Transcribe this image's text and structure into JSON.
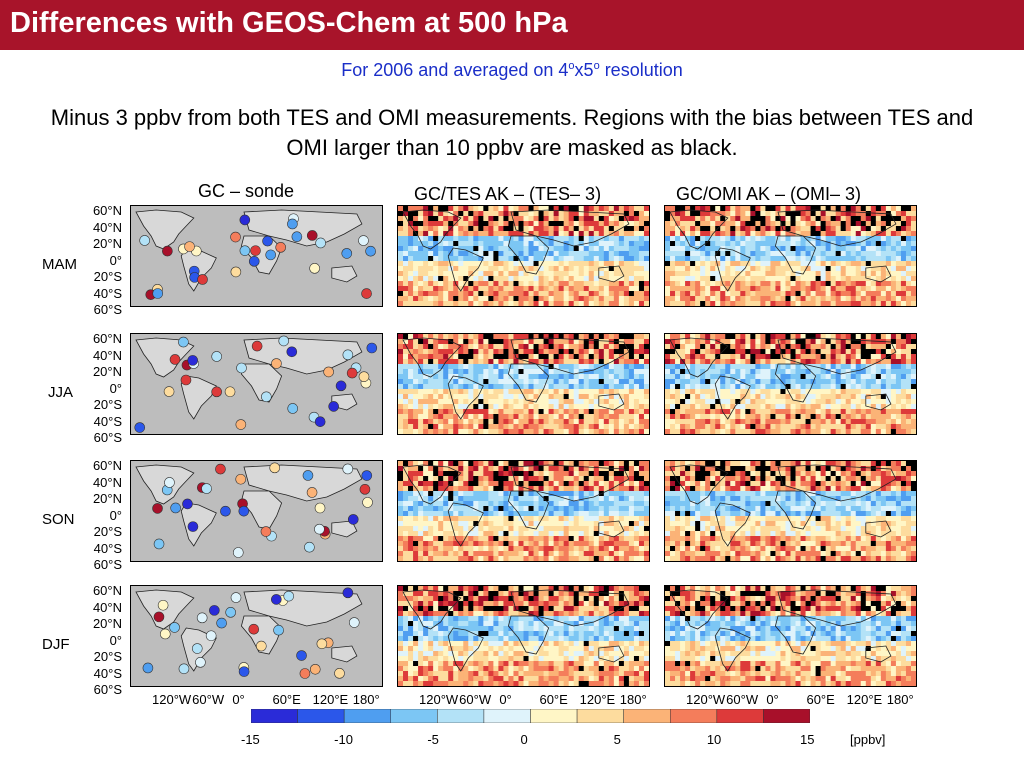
{
  "header": {
    "title": "Differences with GEOS-Chem at 500 hPa",
    "subtitle_main": "For 2006 and averaged on 4",
    "subtitle_sup1": "o",
    "subtitle_mid": "x5",
    "subtitle_sup2": "o",
    "subtitle_end": " resolution",
    "description": "Minus 3 ppbv from both TES and OMI measurements. Regions with the bias between TES and OMI larger than 10 ppbv are masked as black."
  },
  "columns": [
    {
      "title": "GC – sonde"
    },
    {
      "title": "GC/TES AK – (TES– 3)"
    },
    {
      "title": "GC/OMI AK – (OMI– 3)"
    }
  ],
  "seasons": [
    "MAM",
    "JJA",
    "SON",
    "DJF"
  ],
  "lat_labels": [
    "60°N",
    "40°N",
    "20°N",
    "0°",
    "20°S",
    "40°S",
    "60°S"
  ],
  "lon_labels": [
    "120°W",
    "60°W",
    "0°",
    "60°E",
    "120°E",
    "180°"
  ],
  "colorbar": {
    "colors": [
      "#2a2bd8",
      "#2b57ea",
      "#4f9ef0",
      "#7cc6f4",
      "#b3e2f7",
      "#dff3fb",
      "#fff6c6",
      "#fddc9e",
      "#fbb377",
      "#f47d5b",
      "#dd3a3a",
      "#a8102a"
    ],
    "ticks": [
      "-15",
      "-10",
      "-5",
      "0",
      "5",
      "10",
      "15"
    ],
    "unit": "[ppbv]"
  },
  "colors": {
    "title_bg": "#a8142a",
    "subtitle": "#1a2ec8",
    "land": "#bdbdbd",
    "mask": "#000000"
  }
}
